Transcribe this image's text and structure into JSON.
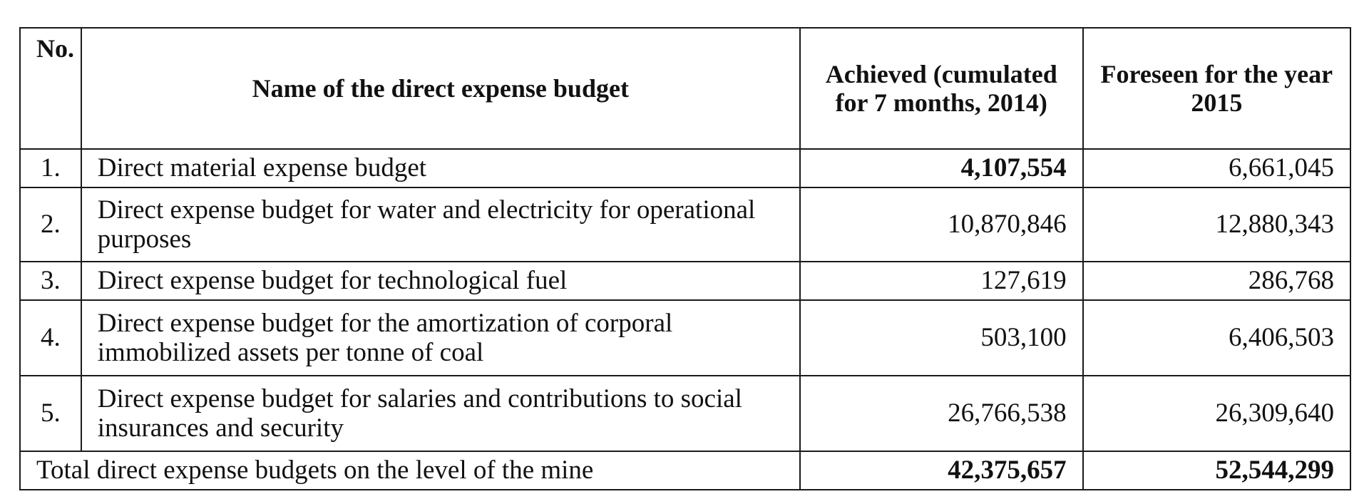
{
  "table": {
    "headers": {
      "no": "No.",
      "name": "Name of the direct expense budget",
      "achieved": "Achieved (cumulated for 7 months, 2014)",
      "foreseen": "Foreseen for the year 2015"
    },
    "rows": [
      {
        "no": "1.",
        "name": "Direct material expense budget",
        "achieved": "4,107,554",
        "foreseen": "6,661,045"
      },
      {
        "no": "2.",
        "name": "Direct expense budget for water and electricity for operational purposes",
        "achieved": "10,870,846",
        "foreseen": "12,880,343"
      },
      {
        "no": "3.",
        "name": "Direct expense budget for technological fuel",
        "achieved": "127,619",
        "foreseen": "286,768"
      },
      {
        "no": "4.",
        "name": "Direct expense budget for the amortization of corporal immobilized assets per tonne of coal",
        "achieved": "503,100",
        "foreseen": "6,406,503"
      },
      {
        "no": "5.",
        "name": "Direct expense budget for salaries and contributions to social insurances and security",
        "achieved": "26,766,538",
        "foreseen": "26,309,640"
      }
    ],
    "total": {
      "label": "Total direct expense budgets on the level of the mine",
      "achieved": "42,375,657",
      "foreseen": "52,544,299"
    }
  }
}
